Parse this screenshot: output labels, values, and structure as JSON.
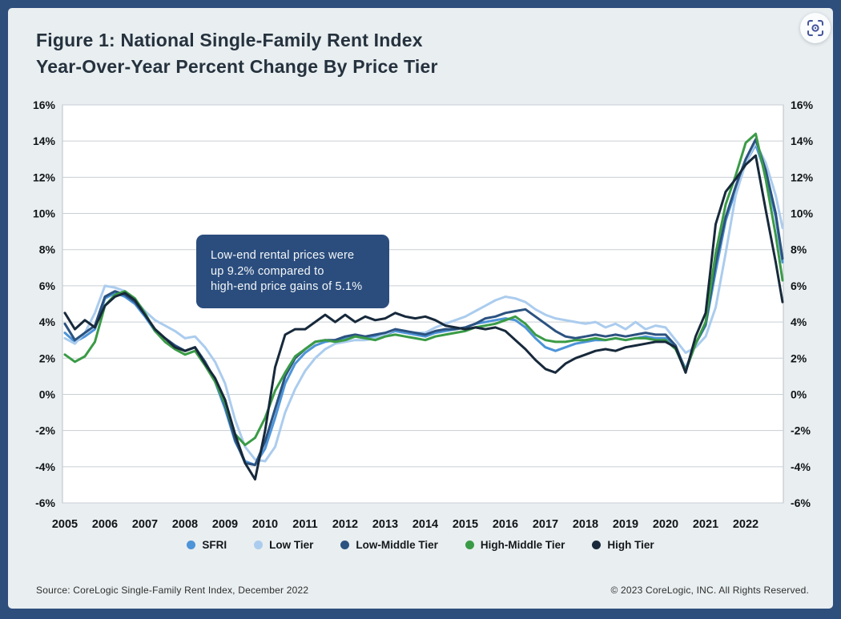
{
  "header": {
    "title_line1": "Figure 1: National Single-Family Rent Index",
    "title_line2": "Year-Over-Year Percent Change By Price Tier"
  },
  "controls": {
    "scan_button_icon": "scan-focus-icon"
  },
  "colors": {
    "frame": "#2e4e7c",
    "card_bg": "#e9eef0",
    "plot_bg": "#ffffff",
    "grid": "#c9cfd4",
    "plot_border": "#b8c1c7",
    "title": "#25323e",
    "annotation_bg": "#2b4d7d",
    "annotation_text": "#f4f7f9",
    "axis_text": "#101417",
    "footer_text": "#2e2e2e",
    "scan_icon": "#44549c"
  },
  "annotation": {
    "lines": [
      "Low-end rental prices were",
      "up 9.2% compared to",
      "high-end price gains of 5.1%"
    ]
  },
  "chart_data": {
    "type": "line",
    "title": "Figure 1: National Single-Family Rent Index Year-Over-Year Percent Change By Price Tier",
    "ylim": [
      -6,
      16
    ],
    "grid": true,
    "legend_position": "bottom",
    "y_ticks": [
      16,
      14,
      12,
      10,
      8,
      6,
      4,
      2,
      0,
      -2,
      -4,
      -6
    ],
    "y_tick_labels": [
      "16%",
      "14%",
      "12%",
      "10%",
      "8%",
      "6%",
      "4%",
      "2%",
      "0%",
      "-2%",
      "-4%",
      "-6%"
    ],
    "x_ticks": [
      2005,
      2006,
      2007,
      2008,
      2009,
      2010,
      2011,
      2012,
      2013,
      2014,
      2015,
      2016,
      2017,
      2018,
      2019,
      2020,
      2021,
      2022
    ],
    "x": [
      2005.0,
      2005.25,
      2005.5,
      2005.75,
      2006.0,
      2006.25,
      2006.5,
      2006.75,
      2007.0,
      2007.25,
      2007.5,
      2007.75,
      2008.0,
      2008.25,
      2008.5,
      2008.75,
      2009.0,
      2009.25,
      2009.5,
      2009.75,
      2010.0,
      2010.25,
      2010.5,
      2010.75,
      2011.0,
      2011.25,
      2011.5,
      2011.75,
      2012.0,
      2012.25,
      2012.5,
      2012.75,
      2013.0,
      2013.25,
      2013.5,
      2013.75,
      2014.0,
      2014.25,
      2014.5,
      2014.75,
      2015.0,
      2015.25,
      2015.5,
      2015.75,
      2016.0,
      2016.25,
      2016.5,
      2016.75,
      2017.0,
      2017.25,
      2017.5,
      2017.75,
      2018.0,
      2018.25,
      2018.5,
      2018.75,
      2019.0,
      2019.25,
      2019.5,
      2019.75,
      2020.0,
      2020.25,
      2020.5,
      2020.75,
      2021.0,
      2021.25,
      2021.5,
      2021.75,
      2022.0,
      2022.25,
      2022.5,
      2022.75,
      2022.92
    ],
    "series": [
      {
        "name": "SFRI",
        "color": "#4d94d8",
        "values": [
          3.4,
          2.9,
          3.2,
          3.6,
          5.3,
          5.6,
          5.4,
          5.0,
          4.3,
          3.5,
          3.1,
          2.7,
          2.4,
          2.6,
          1.8,
          0.7,
          -0.8,
          -2.6,
          -3.7,
          -3.9,
          -3.0,
          -1.3,
          0.6,
          1.7,
          2.3,
          2.7,
          2.9,
          3.0,
          3.1,
          3.2,
          3.1,
          3.2,
          3.3,
          3.5,
          3.4,
          3.3,
          3.2,
          3.4,
          3.5,
          3.6,
          3.7,
          3.9,
          4.0,
          4.1,
          4.2,
          4.1,
          3.7,
          3.1,
          2.6,
          2.4,
          2.6,
          2.8,
          2.9,
          3.0,
          3.0,
          3.1,
          3.0,
          3.1,
          3.2,
          3.1,
          3.1,
          2.6,
          1.4,
          2.8,
          3.8,
          6.8,
          9.6,
          11.3,
          12.8,
          13.8,
          12.2,
          9.8,
          7.3
        ]
      },
      {
        "name": "Low Tier",
        "color": "#abccee",
        "values": [
          3.1,
          2.8,
          3.4,
          4.5,
          6.0,
          5.9,
          5.7,
          5.2,
          4.6,
          4.1,
          3.8,
          3.5,
          3.1,
          3.2,
          2.6,
          1.8,
          0.6,
          -1.4,
          -2.9,
          -3.6,
          -3.7,
          -2.9,
          -1.0,
          0.3,
          1.3,
          2.0,
          2.5,
          2.8,
          2.9,
          3.0,
          3.0,
          3.1,
          3.3,
          3.6,
          3.5,
          3.4,
          3.4,
          3.7,
          3.9,
          4.1,
          4.3,
          4.6,
          4.9,
          5.2,
          5.4,
          5.3,
          5.1,
          4.7,
          4.4,
          4.2,
          4.1,
          4.0,
          3.9,
          4.0,
          3.7,
          3.9,
          3.6,
          4.0,
          3.6,
          3.8,
          3.7,
          3.0,
          2.3,
          2.6,
          3.2,
          4.8,
          7.8,
          11.0,
          12.8,
          13.9,
          12.8,
          11.0,
          9.2
        ]
      },
      {
        "name": "Low-Middle Tier",
        "color": "#2b5280",
        "values": [
          3.9,
          3.0,
          3.4,
          3.8,
          5.4,
          5.7,
          5.5,
          5.1,
          4.4,
          3.6,
          3.1,
          2.7,
          2.4,
          2.6,
          1.8,
          0.8,
          -0.6,
          -2.5,
          -3.8,
          -3.9,
          -2.6,
          -0.8,
          1.0,
          2.0,
          2.5,
          2.9,
          3.0,
          3.0,
          3.2,
          3.3,
          3.2,
          3.3,
          3.4,
          3.6,
          3.5,
          3.4,
          3.3,
          3.5,
          3.6,
          3.6,
          3.7,
          3.9,
          4.2,
          4.3,
          4.5,
          4.6,
          4.7,
          4.3,
          3.9,
          3.5,
          3.2,
          3.1,
          3.2,
          3.3,
          3.2,
          3.3,
          3.2,
          3.3,
          3.4,
          3.3,
          3.3,
          2.7,
          1.3,
          2.8,
          3.9,
          7.2,
          9.8,
          11.5,
          13.0,
          14.1,
          12.4,
          10.0,
          7.5
        ]
      },
      {
        "name": "High-Middle Tier",
        "color": "#3a9b46",
        "values": [
          2.2,
          1.8,
          2.1,
          2.9,
          4.9,
          5.5,
          5.7,
          5.3,
          4.5,
          3.5,
          2.9,
          2.5,
          2.2,
          2.4,
          1.6,
          0.7,
          -0.5,
          -2.2,
          -2.8,
          -2.4,
          -1.3,
          0.2,
          1.2,
          2.1,
          2.5,
          2.9,
          3.0,
          2.9,
          3.0,
          3.2,
          3.1,
          3.0,
          3.2,
          3.3,
          3.2,
          3.1,
          3.0,
          3.2,
          3.3,
          3.4,
          3.5,
          3.7,
          3.8,
          3.9,
          4.1,
          4.3,
          3.9,
          3.3,
          3.0,
          2.9,
          2.9,
          3.0,
          3.0,
          3.1,
          3.0,
          3.1,
          3.0,
          3.1,
          3.1,
          3.0,
          3.0,
          2.5,
          1.3,
          2.8,
          4.0,
          7.8,
          10.5,
          12.1,
          13.9,
          14.4,
          11.9,
          8.8,
          6.3
        ]
      },
      {
        "name": "High Tier",
        "color": "#17293b",
        "values": [
          4.5,
          3.6,
          4.1,
          3.7,
          4.9,
          5.4,
          5.6,
          5.2,
          4.4,
          3.6,
          3.1,
          2.6,
          2.4,
          2.6,
          1.7,
          0.9,
          -0.3,
          -2.2,
          -3.8,
          -4.7,
          -2.0,
          1.5,
          3.3,
          3.6,
          3.6,
          4.0,
          4.4,
          4.0,
          4.4,
          4.0,
          4.3,
          4.1,
          4.2,
          4.5,
          4.3,
          4.2,
          4.3,
          4.1,
          3.8,
          3.7,
          3.6,
          3.7,
          3.6,
          3.7,
          3.5,
          3.0,
          2.5,
          1.9,
          1.4,
          1.2,
          1.7,
          2.0,
          2.2,
          2.4,
          2.5,
          2.4,
          2.6,
          2.7,
          2.8,
          2.9,
          2.9,
          2.6,
          1.2,
          3.2,
          4.5,
          9.4,
          11.2,
          11.9,
          12.7,
          13.2,
          10.2,
          7.3,
          5.1
        ]
      }
    ]
  },
  "footer": {
    "source": "Source: CoreLogic Single-Family Rent Index, December 2022",
    "copyright": "© 2023 CoreLogic, INC. All Rights Reserved."
  }
}
